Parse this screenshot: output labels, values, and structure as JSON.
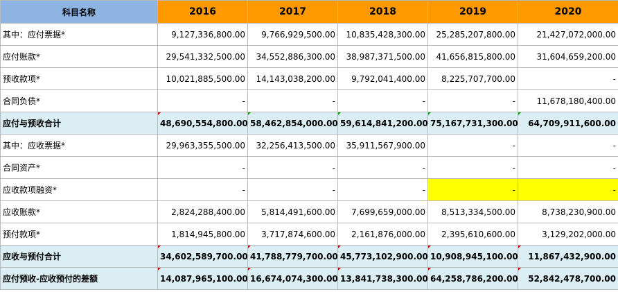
{
  "header": {
    "label": "科目名称",
    "years": [
      "2016",
      "2017",
      "2018",
      "2019",
      "2020"
    ]
  },
  "rows": [
    {
      "label": "其中：应付票据*",
      "values": [
        "9,127,336,800.00",
        "9,766,929,500.00",
        "10,835,428,300.00",
        "25,285,207,800.00",
        "21,427,072,000.00"
      ]
    },
    {
      "label": "应付账款*",
      "values": [
        "29,541,332,500.00",
        "34,552,886,300.00",
        "38,987,371,500.00",
        "41,656,815,800.00",
        "31,604,659,200.00"
      ]
    },
    {
      "label": "预收款项*",
      "values": [
        "10,021,885,500.00",
        "14,143,038,200.00",
        "9,792,041,400.00",
        "8,225,707,700.00",
        "-"
      ]
    },
    {
      "label": "合同负债*",
      "values": [
        "-",
        "-",
        "-",
        "-",
        "11,678,180,400.00"
      ]
    },
    {
      "label": "应付与预收合计",
      "values": [
        "48,690,554,800.00",
        "58,462,854,000.00",
        "59,614,841,200.00",
        "75,167,731,300.00",
        "64,709,911,600.00"
      ]
    },
    {
      "label": "其中：应收票据*",
      "values": [
        "29,963,355,500.00",
        "32,256,413,500.00",
        "35,911,567,900.00",
        "-",
        "-"
      ]
    },
    {
      "label": "合同资产*",
      "values": [
        "-",
        "-",
        "-",
        "-",
        "-"
      ]
    },
    {
      "label": "应收款项融资*",
      "values": [
        "-",
        "-",
        "-",
        "-",
        "-"
      ]
    },
    {
      "label": "应收账款*",
      "values": [
        "2,824,288,400.00",
        "5,814,491,600.00",
        "7,699,659,000.00",
        "8,513,334,500.00",
        "8,738,230,900.00"
      ]
    },
    {
      "label": "预付款项*",
      "values": [
        "1,814,945,800.00",
        "3,717,874,600.00",
        "2,161,876,000.00",
        "2,395,610,600.00",
        "3,129,202,000.00"
      ]
    },
    {
      "label": "应收与预付合计",
      "values": [
        "34,602,589,700.00",
        "41,788,779,700.00",
        "45,773,102,900.00",
        "10,908,945,100.00",
        "11,867,432,900.00"
      ]
    },
    {
      "label": "应付预收-应收预付的差额",
      "values": [
        "14,087,965,100.00",
        "16,674,074,300.00",
        "13,841,738,300.00",
        "64,258,786,200.00",
        "52,842,478,700.00"
      ]
    }
  ],
  "colors": {
    "header_label_bg": "#8db4e2",
    "header_year_bg": "#ff9900",
    "total_row_bg": "#daeef3",
    "highlight_bg": "#ffff00",
    "grid": "#b9b9b9"
  }
}
